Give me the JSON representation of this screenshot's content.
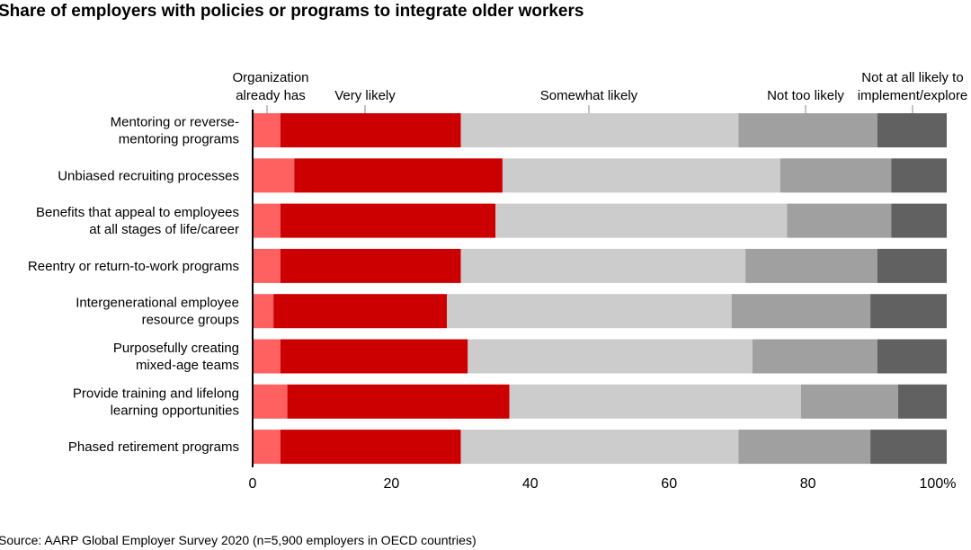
{
  "chart_data": {
    "type": "bar",
    "orientation": "horizontal",
    "stacked": true,
    "title": "Share of employers with policies or programs to integrate older workers",
    "source": "Source: AARP Global Employer Survey 2020 (n=5,900 employers in OECD countries)",
    "categories": [
      [
        "Mentoring or reverse-",
        "mentoring programs"
      ],
      [
        "Unbiased recruiting processes"
      ],
      [
        "Benefits that appeal to employees",
        "at all stages of life/career"
      ],
      [
        "Reentry or return-to-work programs"
      ],
      [
        "Intergenerational employee",
        "resource groups"
      ],
      [
        "Purposefully creating",
        "mixed-age teams"
      ],
      [
        "Provide training and lifelong",
        "learning opportunities"
      ],
      [
        "Phased retirement programs"
      ]
    ],
    "series": [
      {
        "name": [
          "Organization",
          "already has"
        ],
        "color": "#ff6161",
        "values": [
          4,
          6,
          4,
          4,
          3,
          4,
          5,
          4
        ]
      },
      {
        "name": [
          "Very likely"
        ],
        "color": "#cc0000",
        "values": [
          26,
          30,
          31,
          26,
          25,
          27,
          32,
          26
        ]
      },
      {
        "name": [
          "Somewhat likely"
        ],
        "color": "#cccccc",
        "values": [
          40,
          40,
          42,
          41,
          41,
          41,
          42,
          40
        ]
      },
      {
        "name": [
          "Not too likely"
        ],
        "color": "#a0a0a0",
        "values": [
          20,
          16,
          15,
          19,
          20,
          18,
          14,
          19
        ]
      },
      {
        "name": [
          "Not at all likely to",
          "implement/explore"
        ],
        "color": "#616161",
        "values": [
          10,
          8,
          8,
          10,
          11,
          10,
          7,
          11
        ]
      }
    ],
    "xlim": [
      0,
      100
    ],
    "xticks": [
      "0",
      "20",
      "40",
      "60",
      "80",
      "100%"
    ],
    "legend": "top, labels above bars",
    "grid": false
  }
}
